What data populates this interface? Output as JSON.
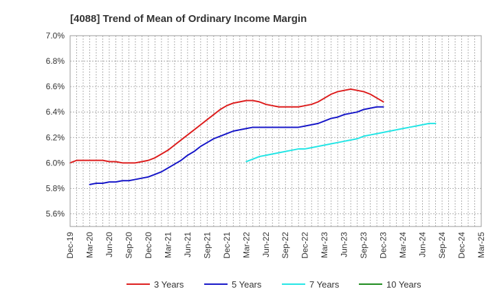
{
  "chart_data": {
    "type": "line",
    "title": "[4088]  Trend of Mean of Ordinary Income Margin",
    "xlabel": "",
    "ylabel": "",
    "ylim": [
      5.5,
      7.0
    ],
    "yticks": [
      "5.6%",
      "5.8%",
      "6.0%",
      "6.2%",
      "6.4%",
      "6.6%",
      "6.8%",
      "7.0%"
    ],
    "ytick_values": [
      5.6,
      5.8,
      6.0,
      6.2,
      6.4,
      6.6,
      6.8,
      7.0
    ],
    "x_labels": [
      "Dec-19",
      "Mar-20",
      "Jun-20",
      "Sep-20",
      "Dec-20",
      "Mar-21",
      "Jun-21",
      "Sep-21",
      "Dec-21",
      "Mar-22",
      "Jun-22",
      "Sep-22",
      "Dec-22",
      "Mar-23",
      "Jun-23",
      "Sep-23",
      "Dec-23",
      "Mar-24",
      "Jun-24",
      "Sep-24",
      "Dec-24",
      "Mar-25"
    ],
    "grid": true,
    "legend_position": "bottom",
    "series": [
      {
        "name": "3 Years",
        "color": "#dd1c1c",
        "start_index": 0,
        "values": [
          6.0,
          6.02,
          6.02,
          6.02,
          6.02,
          6.02,
          6.01,
          6.01,
          6.0,
          6.0,
          6.0,
          6.01,
          6.02,
          6.04,
          6.07,
          6.1,
          6.14,
          6.18,
          6.22,
          6.26,
          6.3,
          6.34,
          6.38,
          6.42,
          6.45,
          6.47,
          6.48,
          6.49,
          6.49,
          6.48,
          6.46,
          6.45,
          6.44,
          6.44,
          6.44,
          6.44,
          6.45,
          6.46,
          6.48,
          6.51,
          6.54,
          6.56,
          6.57,
          6.58,
          6.57,
          6.56,
          6.54,
          6.51,
          6.48
        ]
      },
      {
        "name": "5 Years",
        "color": "#1515c8",
        "start_index": 3,
        "values": [
          5.83,
          5.84,
          5.84,
          5.85,
          5.85,
          5.86,
          5.86,
          5.87,
          5.88,
          5.89,
          5.91,
          5.93,
          5.96,
          5.99,
          6.02,
          6.06,
          6.09,
          6.13,
          6.16,
          6.19,
          6.21,
          6.23,
          6.25,
          6.26,
          6.27,
          6.28,
          6.28,
          6.28,
          6.28,
          6.28,
          6.28,
          6.28,
          6.28,
          6.29,
          6.3,
          6.31,
          6.33,
          6.35,
          6.36,
          6.38,
          6.39,
          6.4,
          6.42,
          6.43,
          6.44,
          6.44
        ]
      },
      {
        "name": "7 Years",
        "color": "#22e5e5",
        "start_index": 27,
        "values": [
          6.01,
          6.03,
          6.05,
          6.06,
          6.07,
          6.08,
          6.09,
          6.1,
          6.11,
          6.11,
          6.12,
          6.13,
          6.14,
          6.15,
          6.16,
          6.17,
          6.18,
          6.19,
          6.21,
          6.22,
          6.23,
          6.24,
          6.25,
          6.26,
          6.27,
          6.28,
          6.29,
          6.3,
          6.31,
          6.31
        ]
      },
      {
        "name": "10 Years",
        "color": "#1c8a1c",
        "start_index": 0,
        "values": []
      }
    ]
  }
}
